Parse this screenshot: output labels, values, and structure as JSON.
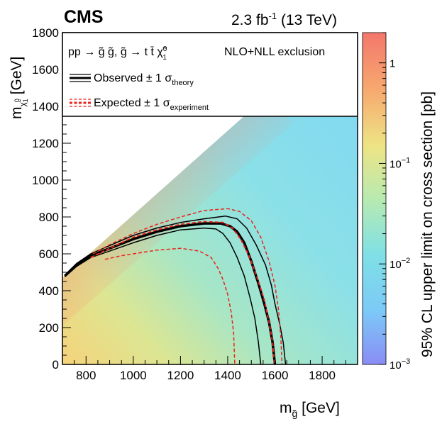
{
  "header": {
    "experiment": "CMS",
    "lumi_value": "2.3 fb",
    "lumi_exp": "-1",
    "lumi_energy": "(13 TeV)"
  },
  "legend": {
    "process": "pp → g̃ g̃, g̃ → t t̄ χ̃",
    "process_sup": "0",
    "process_sub": "1",
    "exclusion": "NLO+NLL exclusion",
    "observed": "Observed ± 1 σ",
    "observed_sub": "theory",
    "expected": "Expected ± 1 σ",
    "expected_sub": "experiment"
  },
  "axes": {
    "x_label": "m",
    "x_label_sub": "g̃",
    "x_label_unit": "[GeV]",
    "y_label": "m",
    "y_label_sub": "χ̃",
    "y_label_sub_idx": "1",
    "y_label_sup": "0",
    "y_label_unit": "[GeV]",
    "z_label": "95% CL upper limit on cross section [pb]"
  },
  "colors": {
    "observed": "#000000",
    "expected": "#e8231d",
    "frame": "#000000"
  },
  "chart_data": {
    "type": "heatmap",
    "xlim": [
      700,
      1950
    ],
    "ylim": [
      0,
      1800
    ],
    "x_ticks": [
      800,
      1000,
      1200,
      1400,
      1600,
      1800
    ],
    "y_ticks": [
      0,
      200,
      400,
      600,
      800,
      1000,
      1200,
      1400,
      1600,
      1800
    ],
    "z_scale": "log",
    "zlim": [
      0.001,
      2
    ],
    "z_ticks": [
      {
        "value": 1,
        "base": "1",
        "exp": ""
      },
      {
        "value": 0.1,
        "base": "10",
        "exp": "−1"
      },
      {
        "value": 0.01,
        "base": "10",
        "exp": "−2"
      },
      {
        "value": 0.001,
        "base": "10",
        "exp": "−3"
      }
    ],
    "grid": false,
    "legend_position": "top",
    "heatmap_region": {
      "diagonal": [
        [
          700,
          470
        ],
        [
          1560,
          1450
        ]
      ],
      "z_at_low_mass": 2,
      "z_high_mass_floor": 0.02
    },
    "series": [
      {
        "name": "Observed",
        "role": "central",
        "points": [
          [
            710,
            480
          ],
          [
            760,
            540
          ],
          [
            820,
            590
          ],
          [
            900,
            630
          ],
          [
            1000,
            680
          ],
          [
            1100,
            720
          ],
          [
            1200,
            750
          ],
          [
            1300,
            765
          ],
          [
            1370,
            765
          ],
          [
            1410,
            750
          ],
          [
            1440,
            720
          ],
          [
            1470,
            660
          ],
          [
            1500,
            560
          ],
          [
            1530,
            440
          ],
          [
            1555,
            330
          ],
          [
            1575,
            230
          ],
          [
            1590,
            120
          ],
          [
            1600,
            0
          ]
        ]
      },
      {
        "name": "Observed + 1 σ theory",
        "role": "band",
        "points": [
          [
            710,
            485
          ],
          [
            760,
            548
          ],
          [
            820,
            600
          ],
          [
            900,
            645
          ],
          [
            1000,
            700
          ],
          [
            1100,
            740
          ],
          [
            1200,
            770
          ],
          [
            1300,
            790
          ],
          [
            1390,
            805
          ],
          [
            1440,
            790
          ],
          [
            1480,
            740
          ],
          [
            1520,
            650
          ],
          [
            1560,
            540
          ],
          [
            1585,
            430
          ],
          [
            1600,
            330
          ],
          [
            1620,
            220
          ],
          [
            1635,
            120
          ],
          [
            1645,
            0
          ]
        ]
      },
      {
        "name": "Observed − 1 σ theory",
        "role": "band",
        "points": [
          [
            710,
            475
          ],
          [
            760,
            532
          ],
          [
            820,
            580
          ],
          [
            900,
            615
          ],
          [
            1000,
            660
          ],
          [
            1100,
            700
          ],
          [
            1200,
            730
          ],
          [
            1300,
            740
          ],
          [
            1350,
            735
          ],
          [
            1380,
            710
          ],
          [
            1410,
            660
          ],
          [
            1440,
            580
          ],
          [
            1470,
            480
          ],
          [
            1495,
            360
          ],
          [
            1515,
            250
          ],
          [
            1530,
            120
          ],
          [
            1540,
            0
          ]
        ]
      },
      {
        "name": "Expected",
        "role": "central",
        "points": [
          [
            820,
            580
          ],
          [
            900,
            630
          ],
          [
            1000,
            690
          ],
          [
            1100,
            730
          ],
          [
            1200,
            760
          ],
          [
            1300,
            775
          ],
          [
            1380,
            770
          ],
          [
            1420,
            740
          ],
          [
            1455,
            680
          ],
          [
            1490,
            590
          ],
          [
            1525,
            470
          ],
          [
            1555,
            350
          ],
          [
            1575,
            230
          ],
          [
            1590,
            120
          ],
          [
            1598,
            0
          ]
        ]
      },
      {
        "name": "Expected + 1 σ experiment",
        "role": "band",
        "points": [
          [
            830,
            600
          ],
          [
            900,
            650
          ],
          [
            1000,
            710
          ],
          [
            1100,
            760
          ],
          [
            1200,
            800
          ],
          [
            1300,
            835
          ],
          [
            1400,
            845
          ],
          [
            1450,
            830
          ],
          [
            1500,
            780
          ],
          [
            1540,
            690
          ],
          [
            1575,
            560
          ],
          [
            1600,
            430
          ],
          [
            1615,
            300
          ],
          [
            1625,
            150
          ],
          [
            1630,
            0
          ]
        ]
      },
      {
        "name": "Expected − 1 σ experiment",
        "role": "band",
        "points": [
          [
            880,
            570
          ],
          [
            950,
            590
          ],
          [
            1000,
            600
          ],
          [
            1100,
            620
          ],
          [
            1200,
            630
          ],
          [
            1280,
            615
          ],
          [
            1330,
            580
          ],
          [
            1360,
            520
          ],
          [
            1380,
            460
          ],
          [
            1400,
            380
          ],
          [
            1415,
            280
          ],
          [
            1425,
            170
          ],
          [
            1430,
            0
          ]
        ]
      }
    ]
  }
}
